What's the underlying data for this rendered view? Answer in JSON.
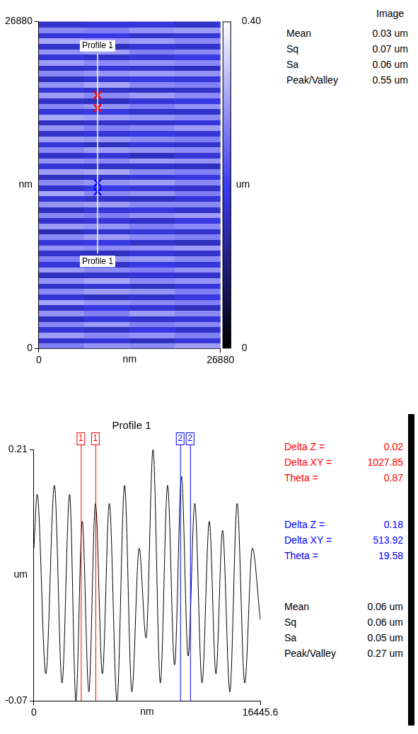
{
  "chart_data": [
    {
      "type": "heatmap",
      "xlim": [
        0,
        26880
      ],
      "ylim": [
        0,
        26880
      ],
      "xticks": [
        0,
        26880
      ],
      "yticks": [
        0,
        26880
      ],
      "xlabel": "nm",
      "ylabel": "nm",
      "heatmap": {
        "x_edges": [
          0,
          6720,
          13440,
          20160,
          26880
        ],
        "y_edges": [
          0,
          448,
          896,
          1344,
          1792,
          2240,
          2688,
          3136,
          3584,
          4032,
          4480,
          4928,
          5376,
          5824,
          6272,
          6720,
          7168,
          7616,
          8064,
          8512,
          8960,
          9408,
          9856,
          10304,
          10752,
          11200,
          11648,
          12096,
          12544,
          12992,
          13440,
          13888,
          14336,
          14784,
          15232,
          15680,
          16128,
          16576,
          17024,
          17472,
          17920,
          18368,
          18816,
          19264,
          19712,
          20160,
          20608,
          21056,
          21504,
          21952,
          22400,
          22848,
          23296,
          23744,
          24192,
          24640,
          25088,
          25536,
          25984,
          26432,
          26880
        ],
        "values": [
          [
            0.27,
            0.29,
            0.28,
            0.3
          ],
          [
            0.17,
            0.18,
            0.16,
            0.18
          ],
          [
            0.3,
            0.28,
            0.29,
            0.27
          ],
          [
            0.18,
            0.17,
            0.19,
            0.17
          ],
          [
            0.28,
            0.3,
            0.27,
            0.28
          ],
          [
            0.16,
            0.18,
            0.17,
            0.18
          ],
          [
            0.29,
            0.27,
            0.3,
            0.28
          ],
          [
            0.17,
            0.19,
            0.18,
            0.16
          ],
          [
            0.31,
            0.29,
            0.28,
            0.27
          ],
          [
            0.18,
            0.16,
            0.17,
            0.19
          ],
          [
            0.28,
            0.3,
            0.29,
            0.27
          ],
          [
            0.17,
            0.18,
            0.16,
            0.18
          ],
          [
            0.29,
            0.31,
            0.28,
            0.29
          ],
          [
            0.16,
            0.17,
            0.18,
            0.17
          ],
          [
            0.3,
            0.28,
            0.27,
            0.29
          ],
          [
            0.18,
            0.17,
            0.19,
            0.18
          ],
          [
            0.27,
            0.29,
            0.3,
            0.28
          ],
          [
            0.17,
            0.16,
            0.18,
            0.17
          ],
          [
            0.29,
            0.28,
            0.29,
            0.3
          ],
          [
            0.18,
            0.19,
            0.17,
            0.16
          ],
          [
            0.28,
            0.3,
            0.28,
            0.27
          ],
          [
            0.15,
            0.17,
            0.18,
            0.17
          ],
          [
            0.3,
            0.29,
            0.27,
            0.28
          ],
          [
            0.17,
            0.18,
            0.17,
            0.19
          ],
          [
            0.28,
            0.27,
            0.29,
            0.3
          ],
          [
            0.16,
            0.18,
            0.19,
            0.17
          ],
          [
            0.29,
            0.3,
            0.28,
            0.28
          ],
          [
            0.18,
            0.17,
            0.16,
            0.18
          ],
          [
            0.31,
            0.28,
            0.29,
            0.27
          ],
          [
            0.17,
            0.19,
            0.18,
            0.17
          ],
          [
            0.28,
            0.29,
            0.3,
            0.28
          ],
          [
            0.16,
            0.17,
            0.18,
            0.19
          ],
          [
            0.3,
            0.31,
            0.28,
            0.27
          ],
          [
            0.18,
            0.17,
            0.17,
            0.16
          ],
          [
            0.29,
            0.28,
            0.3,
            0.29
          ],
          [
            0.17,
            0.18,
            0.16,
            0.18
          ],
          [
            0.28,
            0.3,
            0.29,
            0.28
          ],
          [
            0.18,
            0.16,
            0.18,
            0.17
          ],
          [
            0.3,
            0.29,
            0.28,
            0.27
          ],
          [
            0.17,
            0.18,
            0.19,
            0.18
          ],
          [
            0.29,
            0.27,
            0.28,
            0.3
          ],
          [
            0.16,
            0.17,
            0.17,
            0.18
          ],
          [
            0.31,
            0.3,
            0.29,
            0.28
          ],
          [
            0.18,
            0.19,
            0.17,
            0.17
          ],
          [
            0.28,
            0.29,
            0.27,
            0.29
          ],
          [
            0.17,
            0.16,
            0.18,
            0.19
          ],
          [
            0.3,
            0.28,
            0.3,
            0.28
          ],
          [
            0.18,
            0.17,
            0.16,
            0.17
          ],
          [
            0.29,
            0.31,
            0.28,
            0.27
          ],
          [
            0.16,
            0.18,
            0.19,
            0.18
          ],
          [
            0.28,
            0.29,
            0.3,
            0.29
          ],
          [
            0.17,
            0.18,
            0.17,
            0.16
          ],
          [
            0.3,
            0.28,
            0.29,
            0.28
          ],
          [
            0.18,
            0.17,
            0.18,
            0.19
          ],
          [
            0.29,
            0.3,
            0.27,
            0.28
          ],
          [
            0.17,
            0.16,
            0.18,
            0.17
          ],
          [
            0.31,
            0.29,
            0.3,
            0.28
          ],
          [
            0.18,
            0.19,
            0.17,
            0.18
          ],
          [
            0.28,
            0.27,
            0.29,
            0.3
          ],
          [
            0.17,
            0.18,
            0.18,
            0.17
          ]
        ]
      },
      "colorbar": {
        "range": [
          0,
          0.4
        ],
        "ticks": [
          0,
          {
            "value": 0.4,
            "label": "0.40"
          }
        ],
        "label": "um",
        "colors": [
          "#000000",
          "#3c3cf0",
          "#ffffff"
        ]
      },
      "profile": {
        "label": "Profile 1",
        "x": 8690,
        "y": [
          24240,
          7794
        ],
        "color": "#ffffff"
      },
      "markers": [
        {
          "color": "#ff0000",
          "marker": "x",
          "y": [
            20826,
            19768
          ]
        },
        {
          "color": "#0000ff",
          "marker": "x",
          "y": [
            13613,
            12892
          ]
        }
      ],
      "stats": {
        "title": "Image",
        "rows": [
          {
            "label": "Mean",
            "value": "0.03 um"
          },
          {
            "label": "Sq",
            "value": "0.07 um"
          },
          {
            "label": "Sa",
            "value": "0.06 um"
          },
          {
            "label": "Peak/Valley",
            "value": "0.55 um"
          }
        ]
      }
    },
    {
      "type": "line",
      "title": "Profile 1",
      "x": [
        0,
        240,
        865,
        1491,
        2044,
        2597,
        3054,
        3511,
        3991,
        4472,
        4977,
        5482,
        6035,
        6588,
        7117,
        7646,
        8151,
        8656,
        9185,
        9714,
        10219,
        10724,
        11205,
        11686,
        12215,
        12744,
        13225,
        13706,
        14235,
        14764,
        15317,
        15870,
        16445.6
      ],
      "values": [
        0.1,
        0.16,
        -0.04,
        0.17,
        -0.05,
        0.16,
        -0.07,
        0.13,
        -0.06,
        0.15,
        -0.04,
        0.15,
        -0.07,
        0.17,
        -0.06,
        0.1,
        0.0,
        0.21,
        -0.05,
        0.17,
        -0.03,
        0.18,
        -0.02,
        0.15,
        -0.05,
        0.13,
        -0.04,
        0.12,
        -0.06,
        0.15,
        -0.05,
        0.1,
        0.02
      ],
      "color": "#000000",
      "xlim": [
        0,
        16445.6
      ],
      "xticks": [
        0,
        16445.6
      ],
      "ylim": [
        -0.07,
        0.21
      ],
      "yticks": [
        -0.07,
        0.21
      ],
      "xlabel": "nm",
      "ylabel": "um",
      "cursors": [
        {
          "label": "1",
          "color": "#ff0000",
          "x": [
            3414,
            4472
          ],
          "measurements": [
            {
              "label": "Delta Z =",
              "value": 0.02
            },
            {
              "label": "Delta XY =",
              "value": 1027.85
            },
            {
              "label": "Theta =",
              "value": 0.87
            }
          ]
        },
        {
          "label": "2",
          "color": "#0000ff",
          "x": [
            10627,
            11348
          ],
          "measurements": [
            {
              "label": "Delta Z =",
              "value": 0.18
            },
            {
              "label": "Delta XY =",
              "value": 513.92
            },
            {
              "label": "Theta =",
              "value": 19.58
            }
          ]
        }
      ],
      "stats": {
        "rows": [
          {
            "label": "Mean",
            "value": "0.06 um"
          },
          {
            "label": "Sq",
            "value": "0.06 um"
          },
          {
            "label": "Sa",
            "value": "0.05 um"
          },
          {
            "label": "Peak/Valley",
            "value": "0.27 um"
          }
        ]
      }
    }
  ]
}
